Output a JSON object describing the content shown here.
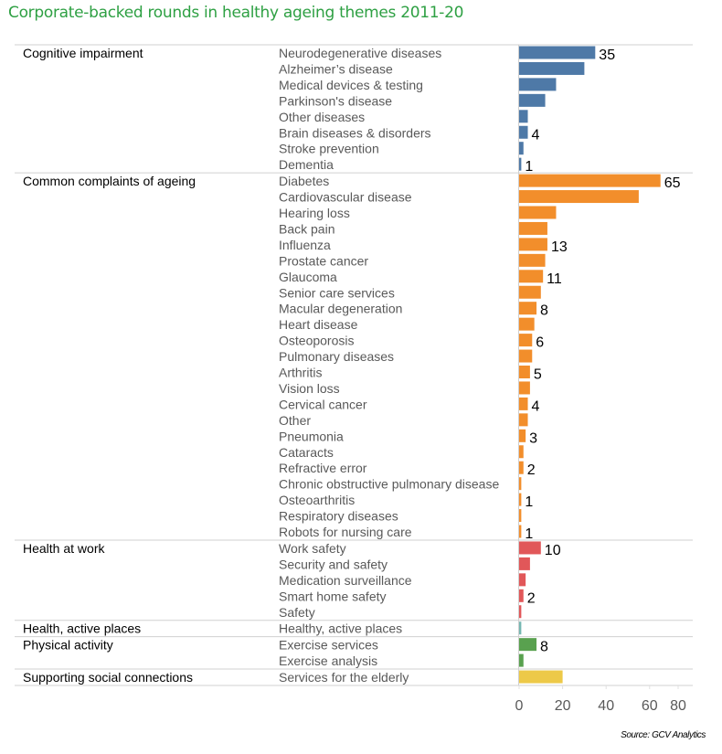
{
  "chart_data": {
    "type": "bar",
    "orientation": "horizontal",
    "title": "Corporate-backed rounds in healthy ageing themes 2011-20",
    "source": "Source: GCV Analytics",
    "xlabel": "",
    "ylabel": "",
    "xlim": [
      0,
      80
    ],
    "xticks": [
      "0",
      "20",
      "40",
      "60",
      "80"
    ],
    "grid": false,
    "groups": [
      {
        "name": "Cognitive impairment",
        "color": "#4e79a7",
        "items": [
          {
            "label": "Neurodegenerative diseases",
            "value": 35,
            "show_value": true
          },
          {
            "label": "Alzheimer’s disease",
            "value": 30,
            "show_value": false
          },
          {
            "label": "Medical devices & testing",
            "value": 17,
            "show_value": false
          },
          {
            "label": "Parkinson's disease",
            "value": 12,
            "show_value": false
          },
          {
            "label": "Other diseases",
            "value": 4,
            "show_value": false
          },
          {
            "label": "Brain diseases & disorders",
            "value": 4,
            "show_value": true
          },
          {
            "label": "Stroke prevention",
            "value": 2,
            "show_value": false
          },
          {
            "label": "Dementia",
            "value": 1,
            "show_value": true
          }
        ]
      },
      {
        "name": "Common complaints of ageing",
        "color": "#f28e2b",
        "items": [
          {
            "label": "Diabetes",
            "value": 65,
            "show_value": true
          },
          {
            "label": "Cardiovascular disease",
            "value": 55,
            "show_value": false
          },
          {
            "label": "Hearing loss",
            "value": 17,
            "show_value": false
          },
          {
            "label": "Back pain",
            "value": 13,
            "show_value": false
          },
          {
            "label": "Influenza",
            "value": 13,
            "show_value": true
          },
          {
            "label": "Prostate cancer",
            "value": 12,
            "show_value": false
          },
          {
            "label": "Glaucoma",
            "value": 11,
            "show_value": true
          },
          {
            "label": "Senior care services",
            "value": 10,
            "show_value": false
          },
          {
            "label": "Macular degeneration",
            "value": 8,
            "show_value": true
          },
          {
            "label": "Heart disease",
            "value": 7,
            "show_value": false
          },
          {
            "label": "Osteoporosis",
            "value": 6,
            "show_value": true
          },
          {
            "label": "Pulmonary diseases",
            "value": 6,
            "show_value": false
          },
          {
            "label": "Arthritis",
            "value": 5,
            "show_value": true
          },
          {
            "label": "Vision loss",
            "value": 5,
            "show_value": false
          },
          {
            "label": "Cervical cancer",
            "value": 4,
            "show_value": true
          },
          {
            "label": "Other",
            "value": 4,
            "show_value": false
          },
          {
            "label": "Pneumonia",
            "value": 3,
            "show_value": true
          },
          {
            "label": "Cataracts",
            "value": 2,
            "show_value": false
          },
          {
            "label": "Refractive error",
            "value": 2,
            "show_value": true
          },
          {
            "label": "Chronic obstructive pulmonary disease",
            "value": 1,
            "show_value": false
          },
          {
            "label": "Osteoarthritis",
            "value": 1,
            "show_value": true
          },
          {
            "label": "Respiratory diseases",
            "value": 1,
            "show_value": false
          },
          {
            "label": "Robots for nursing care",
            "value": 1,
            "show_value": true
          }
        ]
      },
      {
        "name": "Health at work",
        "color": "#e15759",
        "items": [
          {
            "label": "Work safety",
            "value": 10,
            "show_value": true
          },
          {
            "label": "Security and safety",
            "value": 5,
            "show_value": false
          },
          {
            "label": "Medication surveillance",
            "value": 3,
            "show_value": false
          },
          {
            "label": "Smart home safety",
            "value": 2,
            "show_value": true
          },
          {
            "label": "Safety",
            "value": 1,
            "show_value": false
          }
        ]
      },
      {
        "name": "Health, active places",
        "color": "#76b7b2",
        "items": [
          {
            "label": "Healthy, active places",
            "value": 1,
            "show_value": false
          }
        ]
      },
      {
        "name": "Physical activity",
        "color": "#59a14f",
        "items": [
          {
            "label": "Exercise services",
            "value": 8,
            "show_value": true
          },
          {
            "label": "Exercise analysis",
            "value": 2,
            "show_value": false
          }
        ]
      },
      {
        "name": "Supporting social connections",
        "color": "#edc948",
        "items": [
          {
            "label": "Services for the elderly",
            "value": 20,
            "show_value": false
          }
        ]
      }
    ]
  }
}
